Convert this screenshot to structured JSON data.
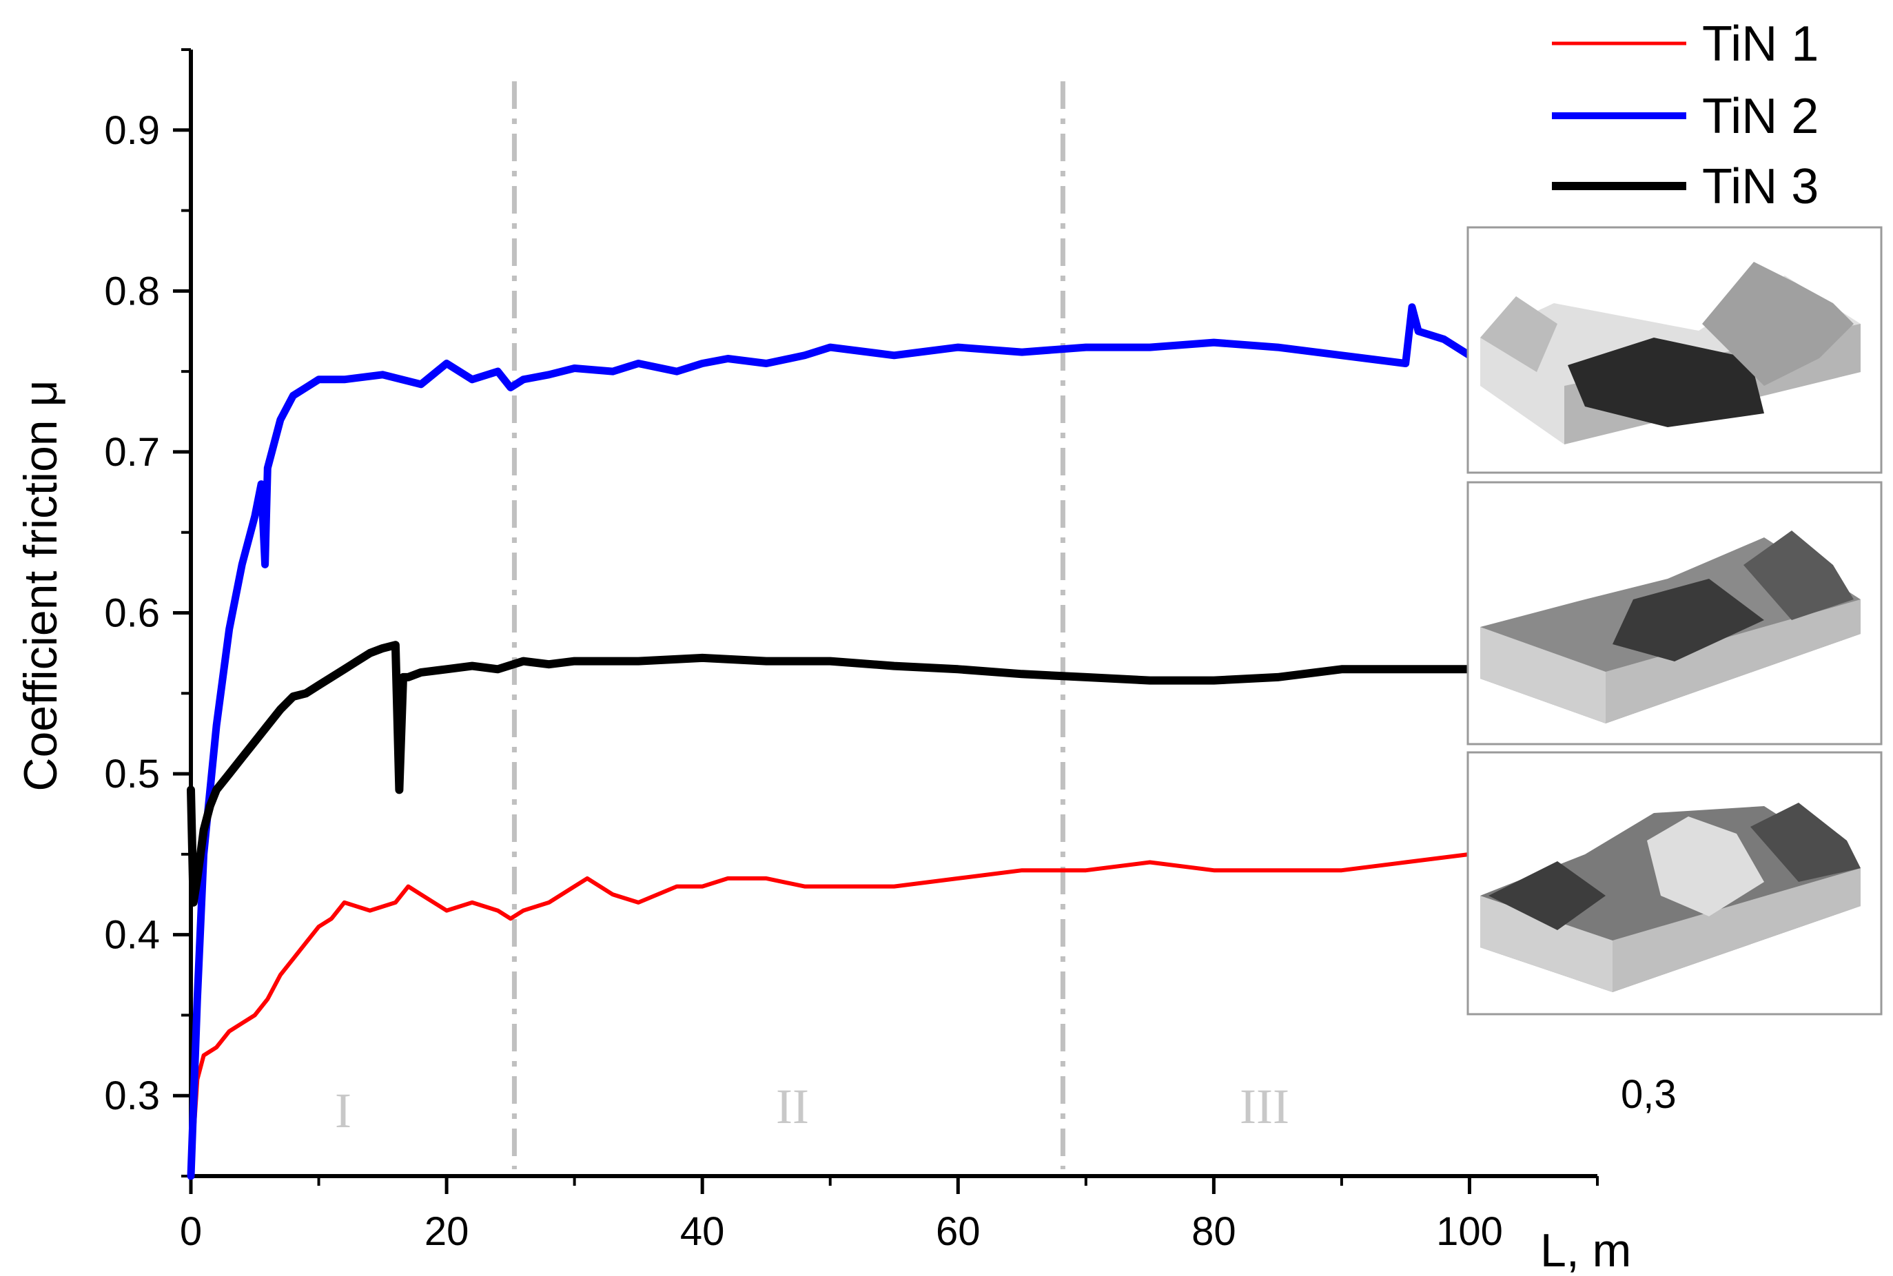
{
  "chart_data": {
    "type": "line",
    "ylabel": "Coefficient friction μ",
    "xlabel": "L, m",
    "xlim": [
      0,
      110
    ],
    "ylim": [
      0.25,
      0.95
    ],
    "x_ticks": [
      "0",
      "20",
      "40",
      "60",
      "80",
      "100"
    ],
    "y_ticks": [
      "0.3",
      "0.4",
      "0.5",
      "0.6",
      "0.7",
      "0.8",
      "0.9"
    ],
    "grid": false,
    "legend_position": "top-right",
    "region_boundaries": [
      25.3,
      68.2
    ],
    "region_labels": [
      "I",
      "II",
      "III"
    ],
    "annotation": "0,3",
    "series": [
      {
        "name": "TiN 1",
        "color": "#ff0000",
        "x": [
          0,
          0.5,
          1,
          2,
          3,
          4,
          5,
          6,
          7,
          8,
          9,
          10,
          11,
          12,
          14,
          16,
          17,
          18,
          20,
          22,
          24,
          25,
          26,
          28,
          30,
          31,
          33,
          35,
          38,
          40,
          42,
          45,
          48,
          50,
          55,
          60,
          65,
          70,
          75,
          80,
          85,
          90,
          95,
          100
        ],
        "y": [
          0.25,
          0.31,
          0.325,
          0.33,
          0.34,
          0.345,
          0.35,
          0.36,
          0.375,
          0.385,
          0.395,
          0.405,
          0.41,
          0.42,
          0.415,
          0.42,
          0.43,
          0.425,
          0.415,
          0.42,
          0.415,
          0.41,
          0.415,
          0.42,
          0.43,
          0.435,
          0.425,
          0.42,
          0.43,
          0.43,
          0.435,
          0.435,
          0.43,
          0.43,
          0.43,
          0.435,
          0.44,
          0.44,
          0.445,
          0.44,
          0.44,
          0.44,
          0.445,
          0.45
        ]
      },
      {
        "name": "TiN 2",
        "color": "#0000ff",
        "x": [
          0,
          0.5,
          1,
          2,
          3,
          4,
          5,
          5.5,
          5.8,
          6,
          7,
          8,
          9,
          10,
          12,
          15,
          18,
          20,
          22,
          24,
          25,
          26,
          28,
          30,
          33,
          35,
          38,
          40,
          42,
          45,
          48,
          50,
          55,
          60,
          65,
          70,
          75,
          80,
          85,
          90,
          95,
          95.5,
          96,
          98,
          100
        ],
        "y": [
          0.25,
          0.36,
          0.45,
          0.53,
          0.59,
          0.63,
          0.66,
          0.68,
          0.63,
          0.69,
          0.72,
          0.735,
          0.74,
          0.745,
          0.745,
          0.748,
          0.742,
          0.755,
          0.745,
          0.75,
          0.74,
          0.745,
          0.748,
          0.752,
          0.75,
          0.755,
          0.75,
          0.755,
          0.758,
          0.755,
          0.76,
          0.765,
          0.76,
          0.765,
          0.762,
          0.765,
          0.765,
          0.768,
          0.765,
          0.76,
          0.755,
          0.79,
          0.775,
          0.77,
          0.76
        ]
      },
      {
        "name": "TiN 3",
        "color": "#000000",
        "x": [
          0,
          0.2,
          0.5,
          1,
          1.5,
          2,
          3,
          4,
          5,
          6,
          7,
          8,
          9,
          10,
          11,
          12,
          13,
          14,
          15,
          16,
          16.3,
          16.6,
          17,
          18,
          20,
          22,
          24,
          26,
          28,
          30,
          35,
          40,
          45,
          50,
          55,
          60,
          65,
          70,
          75,
          80,
          85,
          90,
          95,
          100
        ],
        "y": [
          0.49,
          0.42,
          0.435,
          0.465,
          0.48,
          0.49,
          0.5,
          0.51,
          0.52,
          0.53,
          0.54,
          0.548,
          0.55,
          0.555,
          0.56,
          0.565,
          0.57,
          0.575,
          0.578,
          0.58,
          0.49,
          0.56,
          0.56,
          0.563,
          0.565,
          0.567,
          0.565,
          0.57,
          0.568,
          0.57,
          0.57,
          0.572,
          0.57,
          0.57,
          0.567,
          0.565,
          0.562,
          0.56,
          0.558,
          0.558,
          0.56,
          0.565,
          0.565,
          0.565
        ]
      }
    ]
  }
}
